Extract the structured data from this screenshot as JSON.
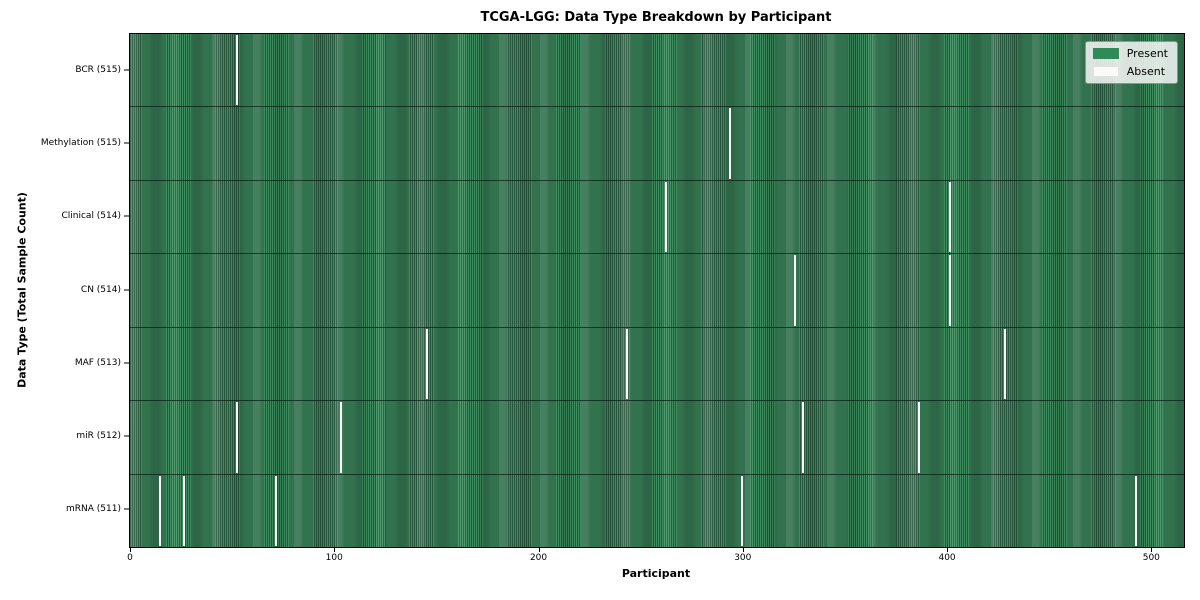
{
  "title": "TCGA-LGG: Data Type Breakdown by Participant",
  "colors": {
    "present": "#2e8b57",
    "absent": "#fafafa",
    "background": "#ffffff"
  },
  "legend": {
    "present_label": "Present",
    "absent_label": "Absent"
  },
  "chart_data": {
    "type": "heatmap",
    "title": "TCGA-LGG: Data Type Breakdown by Participant",
    "xlabel": "Participant",
    "ylabel": "Data Type (Total Sample Count)",
    "legend_entries": [
      "Present",
      "Absent"
    ],
    "legend_position": "upper right",
    "grid": false,
    "total_participants": 516,
    "x_ticks": [
      0,
      100,
      200,
      300,
      400,
      500
    ],
    "xlim": [
      0,
      516
    ],
    "rows": [
      {
        "data_type": "BCR",
        "label": "BCR (515)",
        "present_count": 515,
        "absent_participants": [
          52
        ]
      },
      {
        "data_type": "Methylation",
        "label": "Methylation (515)",
        "present_count": 515,
        "absent_participants": [
          293
        ]
      },
      {
        "data_type": "Clinical",
        "label": "Clinical (514)",
        "present_count": 514,
        "absent_participants": [
          262,
          401
        ]
      },
      {
        "data_type": "CN",
        "label": "CN (514)",
        "present_count": 514,
        "absent_participants": [
          325,
          401
        ]
      },
      {
        "data_type": "MAF",
        "label": "MAF (513)",
        "present_count": 513,
        "absent_participants": [
          145,
          243,
          428
        ]
      },
      {
        "data_type": "miR",
        "label": "miR (512)",
        "present_count": 512,
        "absent_participants": [
          52,
          103,
          329,
          386
        ]
      },
      {
        "data_type": "mRNA",
        "label": "mRNA (511)",
        "present_count": 511,
        "absent_participants": [
          14,
          26,
          71,
          299,
          492
        ]
      }
    ]
  }
}
